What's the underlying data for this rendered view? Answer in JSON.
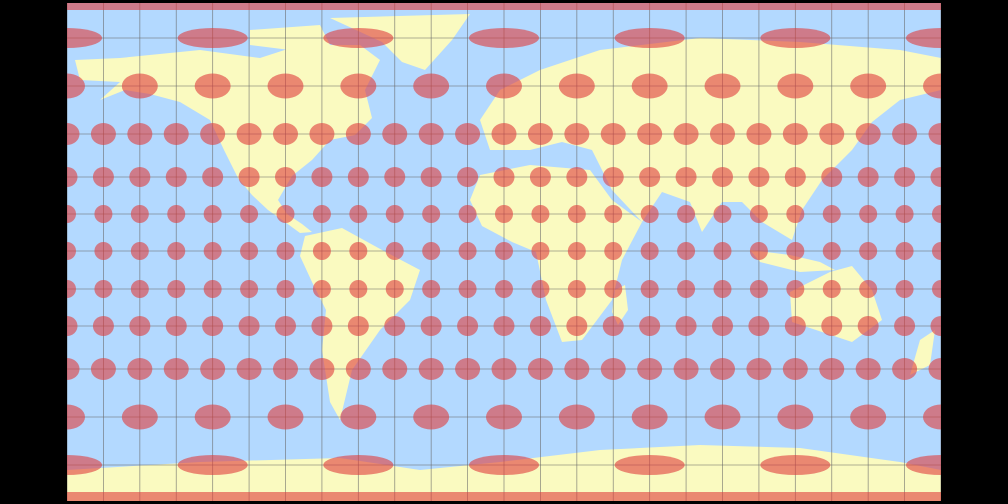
{
  "map": {
    "colors": {
      "ocean": "#b3d9ff",
      "land": "#fafac0",
      "indicatrix": "#e03c3c",
      "graticule": "#666666",
      "background": "#000000"
    },
    "graticule_spacing_deg": 15,
    "indicatrix_rows": [
      {
        "lat": 75,
        "lon_step": 60
      },
      {
        "lat": 60,
        "lon_step": 30
      },
      {
        "lat": 45,
        "lon_step": 15
      },
      {
        "lat": 30,
        "lon_step": 15
      },
      {
        "lat": 15,
        "lon_step": 15
      },
      {
        "lat": 0,
        "lon_step": 15
      },
      {
        "lat": -15,
        "lon_step": 15
      },
      {
        "lat": -30,
        "lon_step": 15
      },
      {
        "lat": -45,
        "lon_step": 15
      },
      {
        "lat": -60,
        "lon_step": 30
      },
      {
        "lat": -75,
        "lon_step": 60
      }
    ]
  }
}
